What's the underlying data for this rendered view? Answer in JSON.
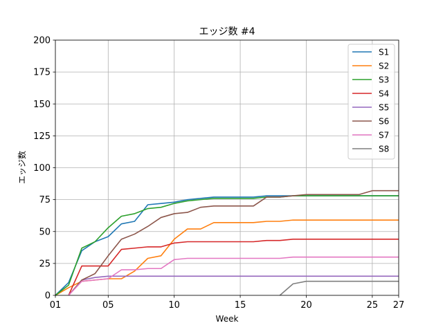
{
  "chart_data": {
    "type": "line",
    "title": "エッジ数 #4",
    "xlabel": "Week",
    "ylabel": "エッジ数",
    "xlim": [
      1,
      27
    ],
    "ylim": [
      0,
      200
    ],
    "xticks": [
      {
        "value": 1,
        "label": "01"
      },
      {
        "value": 5,
        "label": "05"
      },
      {
        "value": 10,
        "label": "10"
      },
      {
        "value": 15,
        "label": "15"
      },
      {
        "value": 20,
        "label": "20"
      },
      {
        "value": 25,
        "label": "25"
      },
      {
        "value": 27,
        "label": "27"
      }
    ],
    "yticks": [
      {
        "value": 0,
        "label": "0"
      },
      {
        "value": 25,
        "label": "25"
      },
      {
        "value": 50,
        "label": "50"
      },
      {
        "value": 75,
        "label": "75"
      },
      {
        "value": 100,
        "label": "100"
      },
      {
        "value": 125,
        "label": "125"
      },
      {
        "value": 150,
        "label": "150"
      },
      {
        "value": 175,
        "label": "175"
      },
      {
        "value": 200,
        "label": "200"
      }
    ],
    "grid": true,
    "legend_position": "top-right",
    "series": [
      {
        "name": "S1",
        "color": "#1f77b4",
        "x": [
          1,
          2,
          3,
          4,
          5,
          6,
          7,
          8,
          9,
          10,
          11,
          12,
          13,
          14,
          15,
          16,
          17,
          18,
          19,
          20,
          21,
          22,
          23,
          24,
          25,
          26,
          27
        ],
        "y": [
          0,
          10,
          35,
          42,
          46,
          56,
          58,
          71,
          72,
          73,
          75,
          76,
          77,
          77,
          77,
          77,
          78,
          78,
          78,
          78,
          78,
          78,
          78,
          78,
          78,
          78,
          78
        ]
      },
      {
        "name": "S2",
        "color": "#ff7f0e",
        "x": [
          1,
          2,
          3,
          4,
          5,
          6,
          7,
          8,
          9,
          10,
          11,
          12,
          13,
          14,
          15,
          16,
          17,
          18,
          19,
          20,
          21,
          22,
          23,
          24,
          25,
          26,
          27
        ],
        "y": [
          0,
          6,
          11,
          12,
          13,
          13,
          19,
          29,
          31,
          44,
          52,
          52,
          57,
          57,
          57,
          57,
          58,
          58,
          59,
          59,
          59,
          59,
          59,
          59,
          59,
          59,
          59
        ]
      },
      {
        "name": "S3",
        "color": "#2ca02c",
        "x": [
          1,
          2,
          3,
          4,
          5,
          6,
          7,
          8,
          9,
          10,
          11,
          12,
          13,
          14,
          15,
          16,
          17,
          18,
          19,
          20,
          21,
          22,
          23,
          24,
          25,
          26,
          27
        ],
        "y": [
          0,
          8,
          37,
          42,
          53,
          62,
          64,
          68,
          69,
          72,
          74,
          75,
          76,
          76,
          76,
          76,
          77,
          77,
          78,
          78,
          78,
          78,
          78,
          78,
          78,
          78,
          78
        ]
      },
      {
        "name": "S4",
        "color": "#d62728",
        "x": [
          2,
          3,
          4,
          5,
          6,
          7,
          8,
          9,
          10,
          11,
          12,
          13,
          14,
          15,
          16,
          17,
          18,
          19,
          20,
          21,
          22,
          23,
          24,
          25,
          26,
          27
        ],
        "y": [
          0,
          23,
          23,
          23,
          36,
          37,
          38,
          38,
          41,
          42,
          42,
          42,
          42,
          42,
          42,
          43,
          43,
          44,
          44,
          44,
          44,
          44,
          44,
          44,
          44,
          44
        ]
      },
      {
        "name": "S5",
        "color": "#9467bd",
        "x": [
          2,
          3,
          4,
          5,
          6,
          7,
          8,
          9,
          10,
          11,
          12,
          13,
          14,
          15,
          16,
          17,
          18,
          19,
          20,
          21,
          22,
          23,
          24,
          25,
          26,
          27
        ],
        "y": [
          0,
          12,
          14,
          15,
          15,
          15,
          15,
          15,
          15,
          15,
          15,
          15,
          15,
          15,
          15,
          15,
          15,
          15,
          15,
          15,
          15,
          15,
          15,
          15,
          15,
          15
        ]
      },
      {
        "name": "S6",
        "color": "#8c564b",
        "x": [
          2,
          3,
          4,
          5,
          6,
          7,
          8,
          9,
          10,
          11,
          12,
          13,
          14,
          15,
          16,
          17,
          18,
          19,
          20,
          21,
          22,
          23,
          24,
          25,
          26,
          27
        ],
        "y": [
          0,
          12,
          17,
          31,
          44,
          48,
          54,
          61,
          64,
          65,
          69,
          70,
          70,
          70,
          70,
          77,
          77,
          78,
          79,
          79,
          79,
          79,
          79,
          82,
          82,
          82
        ]
      },
      {
        "name": "S7",
        "color": "#e377c2",
        "x": [
          2,
          3,
          4,
          5,
          6,
          7,
          8,
          9,
          10,
          11,
          12,
          13,
          14,
          15,
          16,
          17,
          18,
          19,
          20,
          21,
          22,
          23,
          24,
          25,
          26,
          27
        ],
        "y": [
          0,
          11,
          12,
          13,
          20,
          20,
          21,
          21,
          28,
          29,
          29,
          29,
          29,
          29,
          29,
          29,
          29,
          30,
          30,
          30,
          30,
          30,
          30,
          30,
          30,
          30
        ]
      },
      {
        "name": "S8",
        "color": "#7f7f7f",
        "x": [
          18,
          19,
          20,
          21,
          22,
          23,
          24,
          25,
          26,
          27
        ],
        "y": [
          0,
          9,
          11,
          11,
          11,
          11,
          11,
          11,
          11,
          11
        ]
      }
    ]
  }
}
